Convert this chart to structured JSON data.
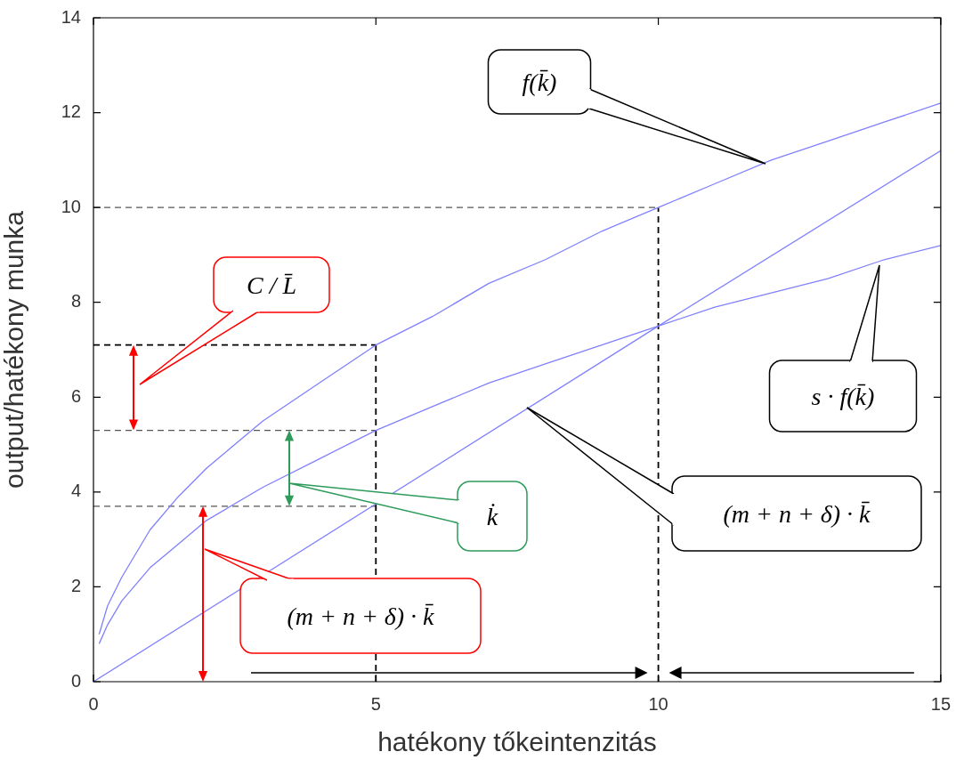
{
  "chart_data": {
    "type": "line",
    "xlabel": "hatékony tőkeintenzitás",
    "ylabel": "output/hatékony munka",
    "xlim": [
      0,
      15
    ],
    "ylim": [
      0,
      14
    ],
    "xticks": [
      0,
      5,
      10,
      15
    ],
    "yticks": [
      0,
      2,
      4,
      6,
      8,
      10,
      12,
      14
    ],
    "grid": false,
    "legend": false,
    "marker": "none",
    "series": [
      {
        "color": "#8080ff",
        "x": [
          0.1,
          0.25,
          0.5,
          1,
          1.5,
          2,
          3,
          4,
          5,
          6,
          7,
          8,
          9,
          10,
          11,
          12,
          13,
          14,
          15
        ],
        "values": [
          1.0,
          1.6,
          2.2,
          3.2,
          3.9,
          4.5,
          5.5,
          6.3,
          7.1,
          7.7,
          8.4,
          8.9,
          9.5,
          10,
          10.5,
          11,
          11.4,
          11.8,
          12.2
        ]
      },
      {
        "color": "#8080ff",
        "x": [
          0.1,
          0.25,
          0.5,
          1,
          1.5,
          2,
          3,
          4,
          5,
          6,
          7,
          8,
          9,
          10,
          11,
          12,
          13,
          14,
          15
        ],
        "values": [
          0.8,
          1.2,
          1.7,
          2.4,
          2.9,
          3.4,
          4.1,
          4.7,
          5.3,
          5.8,
          6.3,
          6.7,
          7.1,
          7.5,
          7.9,
          8.2,
          8.5,
          8.9,
          9.2
        ]
      },
      {
        "color": "#8080ff",
        "x": [
          0,
          10,
          15
        ],
        "values": [
          0,
          7.5,
          11.2
        ]
      }
    ],
    "ref_lines": [
      {
        "axis": "y",
        "value": 10,
        "color": "#555555",
        "line_style": "dashed"
      },
      {
        "axis": "y",
        "value": 7.1,
        "color": "#000000",
        "line_style": "dashed"
      },
      {
        "axis": "y",
        "value": 5.3,
        "color": "#555555",
        "line_style": "dashed"
      },
      {
        "axis": "y",
        "value": 3.7,
        "color": "#555555",
        "line_style": "dashed"
      },
      {
        "axis": "x",
        "value": 5,
        "color": "#000000",
        "line_style": "dashed"
      },
      {
        "axis": "x",
        "value": 10,
        "color": "#000000",
        "line_style": "dashed"
      }
    ],
    "annotations": [
      "f(k̄)",
      "C / L̄",
      "k̇",
      "(m + n + δ) · k̄",
      "s · f(k̄)",
      "(m + n + δ) · k̄"
    ]
  }
}
